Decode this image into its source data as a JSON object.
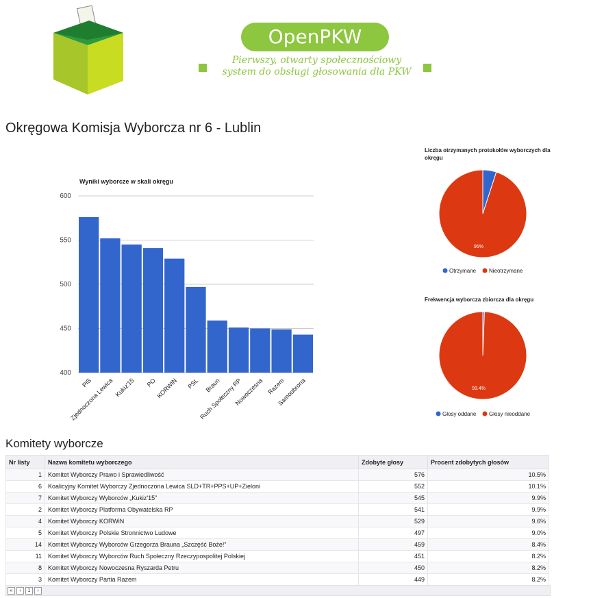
{
  "header": {
    "brand": "OpenPKW",
    "tagline_line1": "Pierwszy, otwarty społecznościowy",
    "tagline_line2": "system do obsługi głosowania dla PKW"
  },
  "page_title": "Okręgowa Komisja Wyborcza nr 6 - Lublin",
  "colors": {
    "brand_green": "#8dc63f",
    "bar_blue": "#3366cc",
    "pie_red": "#dc3912"
  },
  "chart_data": [
    {
      "type": "bar",
      "title": "Wyniki wyborcze w skali okręgu",
      "categories": [
        "PiS",
        "Zjednoczona Lewica",
        "Kukiz'15",
        "PO",
        "KORWiN",
        "PSL",
        "Braun",
        "Ruch Społeczny RP",
        "Nowoczesna",
        "Razem",
        "Samoobrona"
      ],
      "values": [
        576,
        552,
        545,
        541,
        529,
        497,
        459,
        451,
        450,
        449,
        443
      ],
      "ylim": [
        400,
        600
      ],
      "yticks": [
        "400",
        "450",
        "500",
        "550",
        "600"
      ],
      "grid": true
    },
    {
      "type": "pie",
      "title_line1": "Liczba otrzymanych protokołów wyborczych dla",
      "title_line2": "okręgu",
      "slices": [
        {
          "label": "Otrzymane",
          "value": 5,
          "color": "#3366cc"
        },
        {
          "label": "Nieotrzymane",
          "value": 95,
          "color": "#dc3912"
        }
      ],
      "slice_label": "95%",
      "legend": "bottom"
    },
    {
      "type": "pie",
      "title_line1": "Frekwencja wyborcza zbiorcza dla okręgu",
      "slices": [
        {
          "label": "Głosy oddane",
          "value": 0.6,
          "color": "#3366cc"
        },
        {
          "label": "Głosy nieoddane",
          "value": 99.4,
          "color": "#dc3912"
        }
      ],
      "slice_label": "99.4%",
      "legend": "bottom"
    }
  ],
  "committees": {
    "title": "Komitety wyborcze",
    "headers": [
      "Nr listy",
      "Nazwa komitetu wyborczego",
      "Zdobyte głosy",
      "Procent zdobytych głosów"
    ],
    "rows": [
      [
        "1",
        "Komitet Wyborczy Prawo i Sprawiedliwość",
        "576",
        "10.5%"
      ],
      [
        "6",
        "Koalicyjny Komitet Wyborczy Zjednoczona Lewica SLD+TR+PPS+UP+Zieloni",
        "552",
        "10.1%"
      ],
      [
        "7",
        "Komitet Wyborczy Wyborców „Kukiz'15”",
        "545",
        "9.9%"
      ],
      [
        "2",
        "Komitet Wyborczy Platforma Obywatelska RP",
        "541",
        "9.9%"
      ],
      [
        "4",
        "Komitet Wyborczy KORWiN",
        "529",
        "9.6%"
      ],
      [
        "5",
        "Komitet Wyborczy Polskie Stronnictwo Ludowe",
        "497",
        "9.0%"
      ],
      [
        "14",
        "Komitet Wyborczy Wyborców Grzegorza Brauna „Szczęść Boże!”",
        "459",
        "8.4%"
      ],
      [
        "11",
        "Komitet Wyborczy Wyborców Ruch Społeczny Rzeczypospolitej Polskiej",
        "451",
        "8.2%"
      ],
      [
        "8",
        "Komitet Wyborczy Nowoczesna Ryszarda Petru",
        "450",
        "8.2%"
      ],
      [
        "3",
        "Komitet Wyborczy Partia Razem",
        "449",
        "8.2%"
      ]
    ],
    "pager_page": "1"
  }
}
